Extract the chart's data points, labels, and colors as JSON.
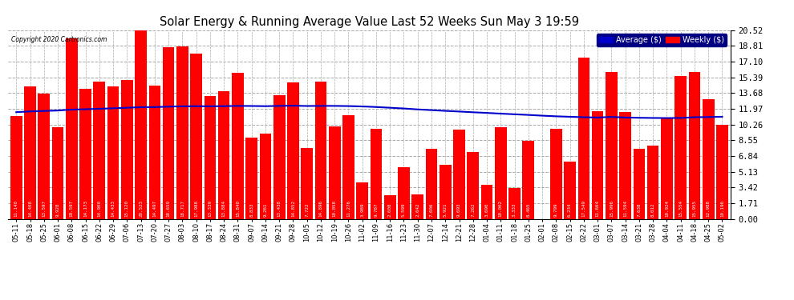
{
  "title": "Solar Energy & Running Average Value Last 52 Weeks Sun May 3 19:59",
  "copyright": "Copyright 2020 Cartronics.com",
  "bar_color": "#ff0000",
  "avg_line_color": "#0000cc",
  "background_color": "#ffffff",
  "grid_color": "#aaaaaa",
  "ylim": [
    0,
    20.52
  ],
  "yticks": [
    0.0,
    1.71,
    3.42,
    5.13,
    6.84,
    8.55,
    10.26,
    11.97,
    13.68,
    15.39,
    17.1,
    18.81,
    20.52
  ],
  "legend_avg_color": "#0000cc",
  "legend_weekly_color": "#ff0000",
  "categories": [
    "05-11",
    "05-18",
    "05-25",
    "06-01",
    "06-08",
    "06-15",
    "06-22",
    "06-29",
    "07-06",
    "07-13",
    "07-20",
    "07-27",
    "08-03",
    "08-10",
    "08-17",
    "08-24",
    "08-31",
    "09-07",
    "09-14",
    "09-21",
    "09-28",
    "10-05",
    "10-12",
    "10-19",
    "10-26",
    "11-02",
    "11-09",
    "11-16",
    "11-23",
    "11-30",
    "12-07",
    "12-14",
    "12-21",
    "12-28",
    "01-04",
    "01-11",
    "01-18",
    "01-25",
    "02-01",
    "02-08",
    "02-15",
    "02-22",
    "03-01",
    "03-07",
    "03-14",
    "03-21",
    "03-28",
    "04-04",
    "04-11",
    "04-18",
    "04-25",
    "05-02"
  ],
  "values": [
    11.14,
    14.408,
    13.597,
    9.928,
    19.597,
    14.173,
    14.9,
    14.433,
    15.12,
    20.523,
    14.497,
    18.659,
    18.717,
    17.988,
    13.339,
    13.884,
    15.84,
    8.833,
    9.261,
    13.438,
    14.852,
    7.722,
    14.896,
    10.058,
    11.276,
    3.989,
    9.787,
    2.608,
    5.599,
    2.642,
    7.606,
    5.921,
    9.693,
    7.262,
    3.69,
    10.002,
    3.333,
    8.465,
    0.008,
    9.799,
    6.234,
    17.549,
    11.664,
    15.996,
    11.594,
    7.638,
    8.012,
    10.924,
    15.554,
    15.955,
    12.988,
    10.196
  ],
  "avg_values": [
    11.6,
    11.68,
    11.73,
    11.78,
    11.88,
    11.92,
    11.97,
    12.02,
    12.08,
    12.14,
    12.15,
    12.2,
    12.23,
    12.25,
    12.24,
    12.25,
    12.28,
    12.27,
    12.25,
    12.28,
    12.3,
    12.27,
    12.28,
    12.28,
    12.26,
    12.22,
    12.16,
    12.08,
    12.0,
    11.9,
    11.82,
    11.74,
    11.67,
    11.59,
    11.52,
    11.44,
    11.37,
    11.3,
    11.22,
    11.15,
    11.1,
    11.05,
    11.02,
    11.08,
    11.02,
    10.99,
    10.97,
    10.96,
    10.97,
    11.05,
    11.07,
    11.1
  ]
}
